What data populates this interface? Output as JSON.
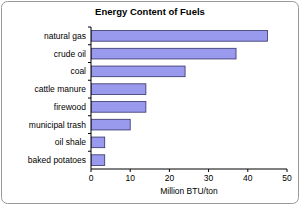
{
  "chart_data": {
    "type": "bar",
    "title": "Energy Content of Fuels",
    "orientation": "horizontal",
    "categories": [
      "natural gas",
      "crude oil",
      "coal",
      "cattle manure",
      "firewood",
      "municipal trash",
      "oil shale",
      "baked potatoes"
    ],
    "values": [
      45,
      37,
      24,
      14,
      14,
      10,
      3.5,
      3.5
    ],
    "color": "#9999ee",
    "x_label": "Million BTU/ton",
    "xlim": [
      0,
      50
    ],
    "xticks": [
      0,
      10,
      20,
      30,
      40,
      50
    ],
    "grid": false
  }
}
